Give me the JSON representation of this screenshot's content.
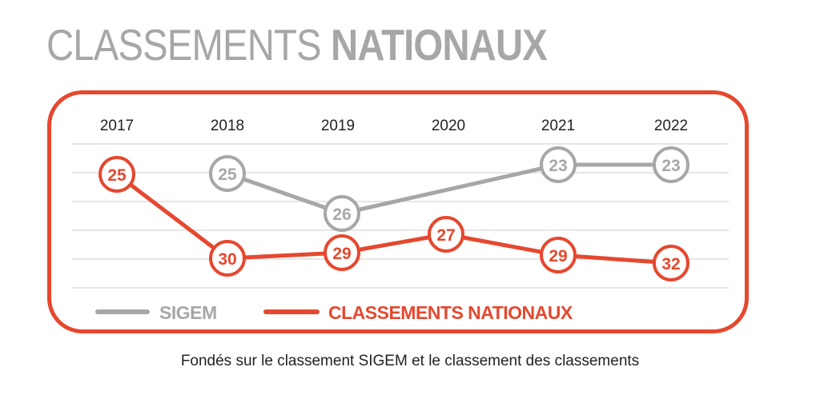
{
  "title": {
    "light": "CLASSEMENTS",
    "bold": "NATIONAUX"
  },
  "caption": "Fondés sur le classement SIGEM et le classement des classements",
  "colors": {
    "sigem": "#a7a7a7",
    "nationaux": "#e5482f",
    "frame": "#e5482f",
    "grid": "#dddddd",
    "text": "#222222"
  },
  "chart_data": {
    "type": "line",
    "categories": [
      "2017",
      "2018",
      "2019",
      "2020",
      "2021",
      "2022"
    ],
    "series": [
      {
        "name": "SIGEM",
        "values": [
          null,
          25,
          26,
          null,
          23,
          23
        ],
        "labels": [
          "",
          "25",
          "26",
          "",
          "23",
          "23"
        ]
      },
      {
        "name": "CLASSEMENTS NATIONAUX",
        "values": [
          25,
          30,
          29,
          27,
          29,
          32
        ],
        "labels": [
          "25",
          "30",
          "29",
          "27",
          "29",
          "32"
        ]
      }
    ],
    "legend": "bottom",
    "grid": true,
    "y_inverted": true
  }
}
